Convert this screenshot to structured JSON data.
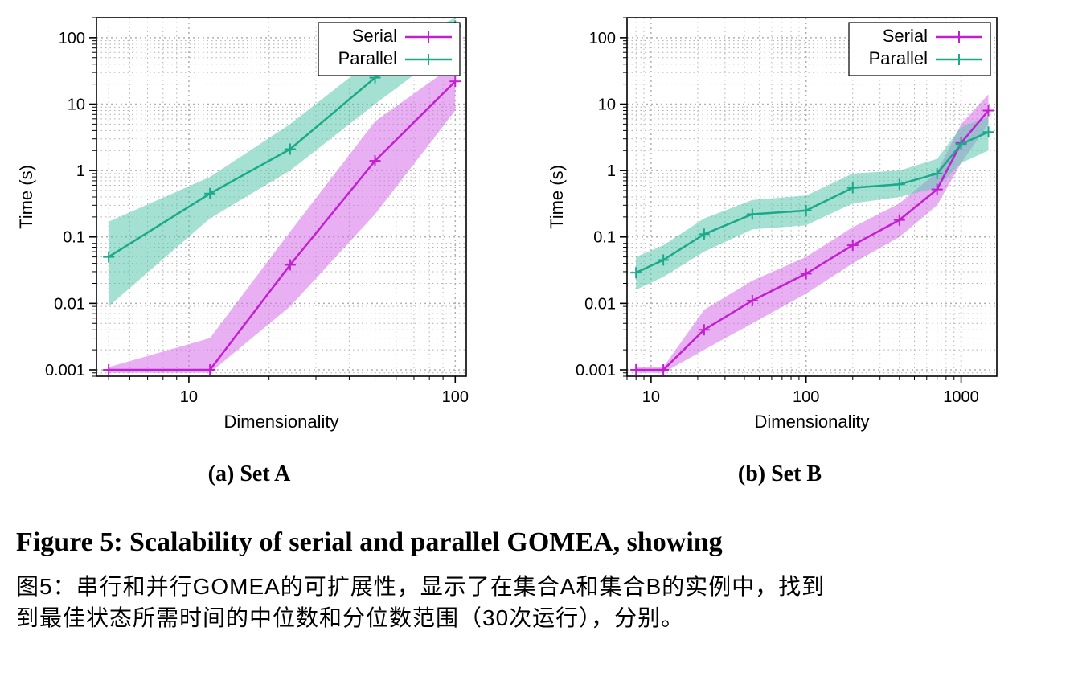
{
  "figure": {
    "caption_en": "Figure 5: Scalability of serial and parallel GOMEA, showing",
    "caption_cn_line1": "图5：串行和并行GOMEA的可扩展性，显示了在集合A和集合B的实例中，找到",
    "caption_cn_line2": "到最佳状态所需时间的中位数和分位数范围（30次运行），分别。"
  },
  "chartA": {
    "type": "line",
    "subcaption": "(a) Set A",
    "xlabel": "Dimensionality",
    "ylabel": "Time (s)",
    "label_fontsize": 22,
    "tick_fontsize": 20,
    "background_color": "#ffffff",
    "grid_color": "#b0b0b0",
    "axis_color": "#000000",
    "x_scale": "log",
    "y_scale": "log",
    "xlim": [
      4.5,
      110
    ],
    "ylim": [
      0.0008,
      200
    ],
    "xticks": [
      10,
      100
    ],
    "yticks": [
      0.001,
      0.01,
      0.1,
      1,
      10,
      100
    ],
    "legend": {
      "position": "top-right",
      "entries": [
        {
          "label": "Serial",
          "color": "#c020d0"
        },
        {
          "label": "Parallel",
          "color": "#1aaa8a"
        }
      ],
      "fontsize": 22
    },
    "series": [
      {
        "name": "Serial",
        "color": "#c020d0",
        "fill_color": "#d670e8",
        "fill_opacity": 0.55,
        "line_width": 2.5,
        "marker": "plus",
        "x": [
          5,
          12,
          24,
          50,
          100
        ],
        "y": [
          0.001,
          0.001,
          0.038,
          1.4,
          22
        ],
        "lo": [
          0.0009,
          0.0009,
          0.009,
          0.22,
          8
        ],
        "hi": [
          0.0011,
          0.003,
          0.12,
          5.5,
          40
        ]
      },
      {
        "name": "Parallel",
        "color": "#1aaa8a",
        "fill_color": "#5bc9ae",
        "fill_opacity": 0.55,
        "line_width": 2.5,
        "marker": "plus",
        "x": [
          5,
          12,
          24,
          50,
          100
        ],
        "y": [
          0.05,
          0.45,
          2.1,
          25,
          150
        ],
        "lo": [
          0.009,
          0.19,
          1.0,
          10,
          80
        ],
        "hi": [
          0.17,
          0.8,
          5.0,
          50,
          200
        ]
      }
    ]
  },
  "chartB": {
    "type": "line",
    "subcaption": "(b) Set B",
    "xlabel": "Dimensionality",
    "ylabel": "Time (s)",
    "label_fontsize": 22,
    "tick_fontsize": 20,
    "background_color": "#ffffff",
    "grid_color": "#b0b0b0",
    "axis_color": "#000000",
    "x_scale": "log",
    "y_scale": "log",
    "xlim": [
      7,
      1700
    ],
    "ylim": [
      0.0008,
      200
    ],
    "xticks": [
      10,
      100,
      1000
    ],
    "yticks": [
      0.001,
      0.01,
      0.1,
      1,
      10,
      100
    ],
    "legend": {
      "position": "top-right",
      "entries": [
        {
          "label": "Serial",
          "color": "#c020d0"
        },
        {
          "label": "Parallel",
          "color": "#1aaa8a"
        }
      ],
      "fontsize": 22
    },
    "series": [
      {
        "name": "Serial",
        "color": "#c020d0",
        "fill_color": "#d670e8",
        "fill_opacity": 0.55,
        "line_width": 2.5,
        "marker": "plus",
        "x": [
          8,
          12,
          22,
          45,
          100,
          200,
          400,
          700,
          1000,
          1500
        ],
        "y": [
          0.001,
          0.001,
          0.004,
          0.011,
          0.028,
          0.075,
          0.18,
          0.52,
          2.6,
          8
        ],
        "lo": [
          0.0009,
          0.0009,
          0.002,
          0.005,
          0.014,
          0.04,
          0.1,
          0.3,
          1.3,
          5
        ],
        "hi": [
          0.0011,
          0.0011,
          0.008,
          0.022,
          0.05,
          0.14,
          0.32,
          0.95,
          5.0,
          14
        ]
      },
      {
        "name": "Parallel",
        "color": "#1aaa8a",
        "fill_color": "#5bc9ae",
        "fill_opacity": 0.55,
        "line_width": 2.5,
        "marker": "plus",
        "x": [
          8,
          12,
          22,
          45,
          100,
          200,
          400,
          700,
          1000,
          1500
        ],
        "y": [
          0.029,
          0.045,
          0.11,
          0.22,
          0.25,
          0.55,
          0.62,
          0.9,
          2.5,
          3.8
        ],
        "lo": [
          0.016,
          0.025,
          0.06,
          0.13,
          0.15,
          0.32,
          0.4,
          0.55,
          1.3,
          2.0
        ],
        "hi": [
          0.05,
          0.075,
          0.19,
          0.36,
          0.42,
          0.9,
          1.0,
          1.5,
          4.5,
          6.5
        ]
      }
    ]
  }
}
